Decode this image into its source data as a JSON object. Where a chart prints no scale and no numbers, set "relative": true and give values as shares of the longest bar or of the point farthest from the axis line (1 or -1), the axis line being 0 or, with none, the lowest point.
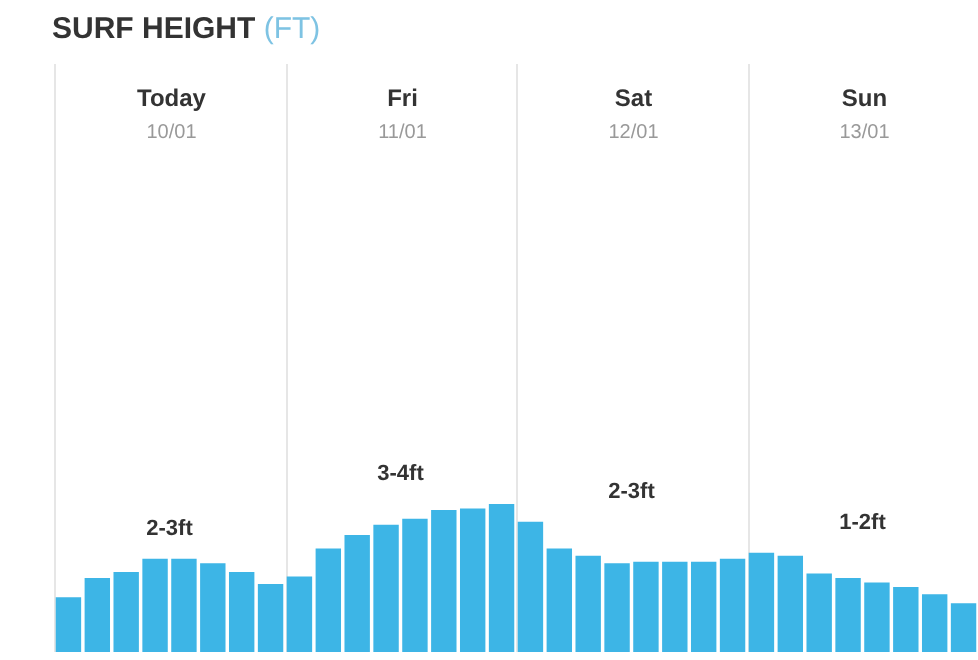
{
  "chart_data": {
    "type": "bar",
    "title": "SURF HEIGHT",
    "subtitle": "(FT)",
    "relative": true,
    "color": "#3db5e6",
    "categories": [
      null,
      null,
      null,
      null,
      null,
      null,
      null,
      null,
      null,
      null,
      null,
      null,
      null,
      null,
      null,
      null,
      null,
      null,
      null,
      null,
      null,
      null,
      null,
      null,
      null,
      null,
      null,
      null,
      null,
      null,
      null,
      null
    ],
    "values": [
      0.37,
      0.5,
      0.54,
      0.63,
      0.63,
      0.6,
      0.54,
      0.46,
      0.51,
      0.7,
      0.79,
      0.86,
      0.9,
      0.96,
      0.97,
      1,
      0.88,
      0.7,
      0.65,
      0.6,
      0.61,
      0.61,
      0.61,
      0.63,
      0.67,
      0.65,
      0.53,
      0.5,
      0.47,
      0.44,
      0.39,
      0.33
    ],
    "annotations": [
      "Today",
      "10/01",
      "Fri",
      "11/01",
      "Sat",
      "12/01",
      "Sun",
      "13/01",
      "2-3ft",
      "3-4ft",
      "2-3ft",
      "1-2ft"
    ],
    "grid": false,
    "legend": false
  }
}
